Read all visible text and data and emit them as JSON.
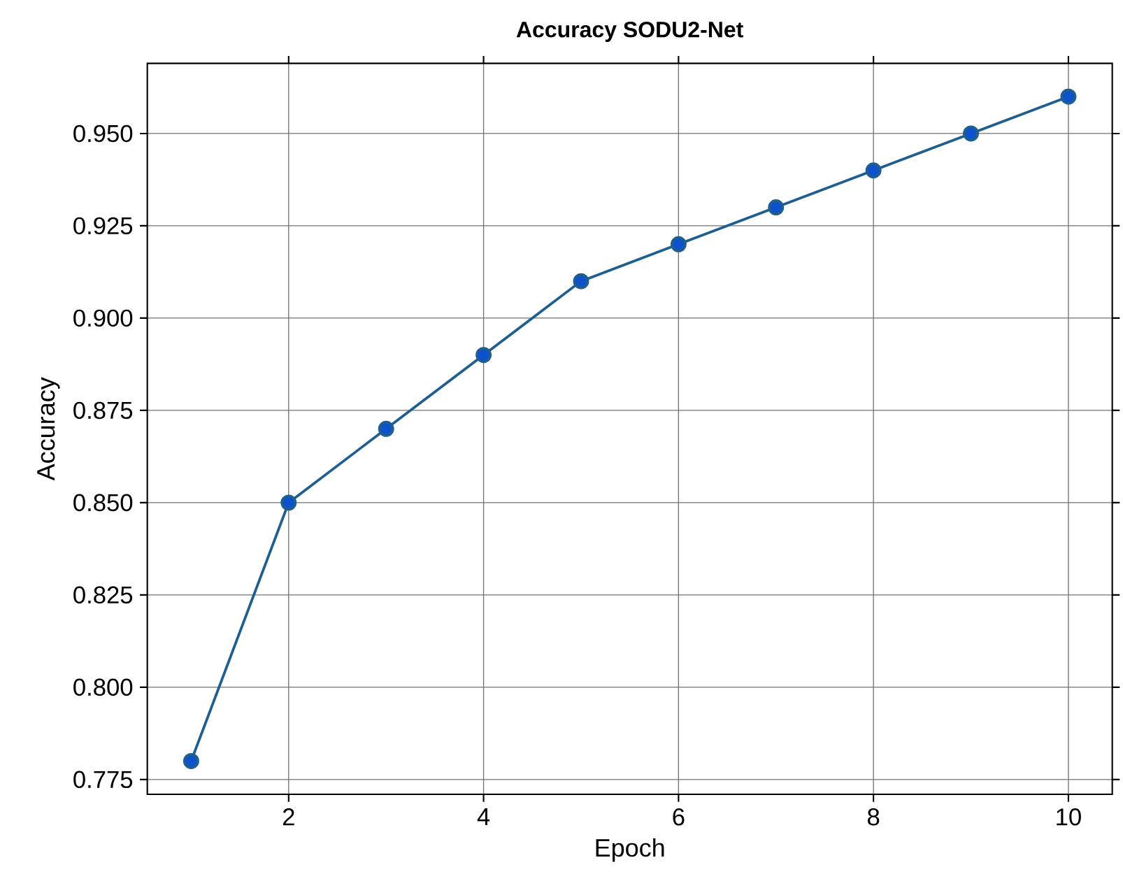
{
  "chart_data": {
    "type": "line",
    "title": "Accuracy SODU2-Net",
    "xlabel": "Epoch",
    "ylabel": "Accuracy",
    "x": [
      1,
      2,
      3,
      4,
      5,
      6,
      7,
      8,
      9,
      10
    ],
    "series": [
      {
        "color": "#1f5f8f",
        "values": [
          0.78,
          0.85,
          0.87,
          0.89,
          0.91,
          0.92,
          0.93,
          0.94,
          0.95,
          0.96
        ]
      }
    ],
    "xlim": [
      0.55,
      10.45
    ],
    "xticks": [
      2,
      4,
      6,
      8,
      10
    ],
    "ylim": [
      0.771,
      0.969
    ],
    "yticks": [
      {
        "value": 0.775,
        "label": "0.775"
      },
      {
        "value": 0.8,
        "label": "0.800"
      },
      {
        "value": 0.825,
        "label": "0.825"
      },
      {
        "value": 0.85,
        "label": "0.850"
      },
      {
        "value": 0.875,
        "label": "0.875"
      },
      {
        "value": 0.9,
        "label": "0.900"
      },
      {
        "value": 0.925,
        "label": "0.925"
      },
      {
        "value": 0.95,
        "label": "0.950"
      }
    ],
    "grid": true,
    "marker": "circle",
    "line_style": "solid"
  }
}
